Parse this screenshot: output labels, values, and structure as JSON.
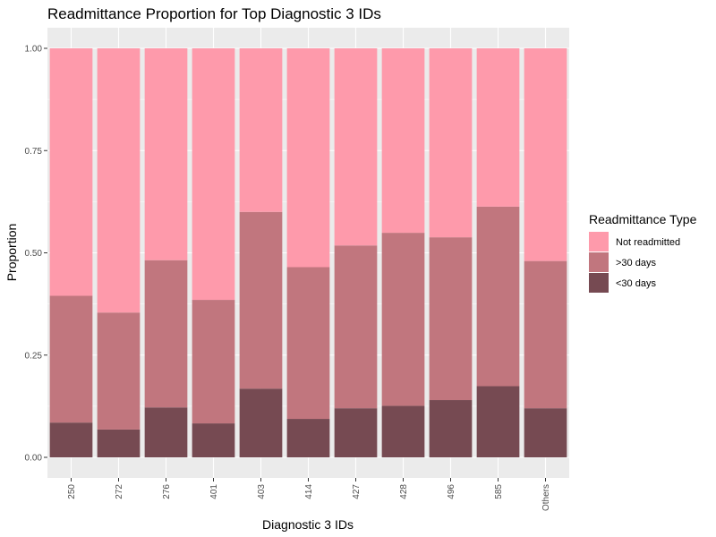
{
  "chart_data": {
    "type": "bar",
    "stacked": true,
    "title": "Readmittance Proportion for Top Diagnostic 3 IDs",
    "xlabel": "Diagnostic 3 IDs",
    "ylabel": "Proportion",
    "ylim": [
      0,
      1
    ],
    "yticks": [
      "0.00",
      "0.25",
      "0.50",
      "0.75",
      "1.00"
    ],
    "grid": true,
    "legend_position": "right",
    "legend_title": "Readmittance Type",
    "categories": [
      "250",
      "272",
      "276",
      "401",
      "403",
      "414",
      "427",
      "428",
      "496",
      "585",
      "Others"
    ],
    "series": [
      {
        "name": "<30 days",
        "color": "#764A52",
        "values": [
          0.085,
          0.068,
          0.122,
          0.083,
          0.168,
          0.094,
          0.12,
          0.126,
          0.14,
          0.174,
          0.12
        ]
      },
      {
        "name": ">30 days",
        "color": "#C1767E",
        "values": [
          0.31,
          0.286,
          0.36,
          0.302,
          0.432,
          0.371,
          0.398,
          0.423,
          0.398,
          0.439,
          0.36
        ]
      },
      {
        "name": "Not readmitted",
        "color": "#FE9AAB",
        "values": [
          0.605,
          0.646,
          0.518,
          0.615,
          0.4,
          0.535,
          0.482,
          0.451,
          0.462,
          0.387,
          0.52
        ]
      }
    ],
    "legend_order": [
      "Not readmitted",
      ">30 days",
      "<30 days"
    ]
  },
  "colors": {
    "panel_background": "#EBEBEB",
    "gridline": "#FFFFFF",
    "tick_color": "#333333"
  }
}
